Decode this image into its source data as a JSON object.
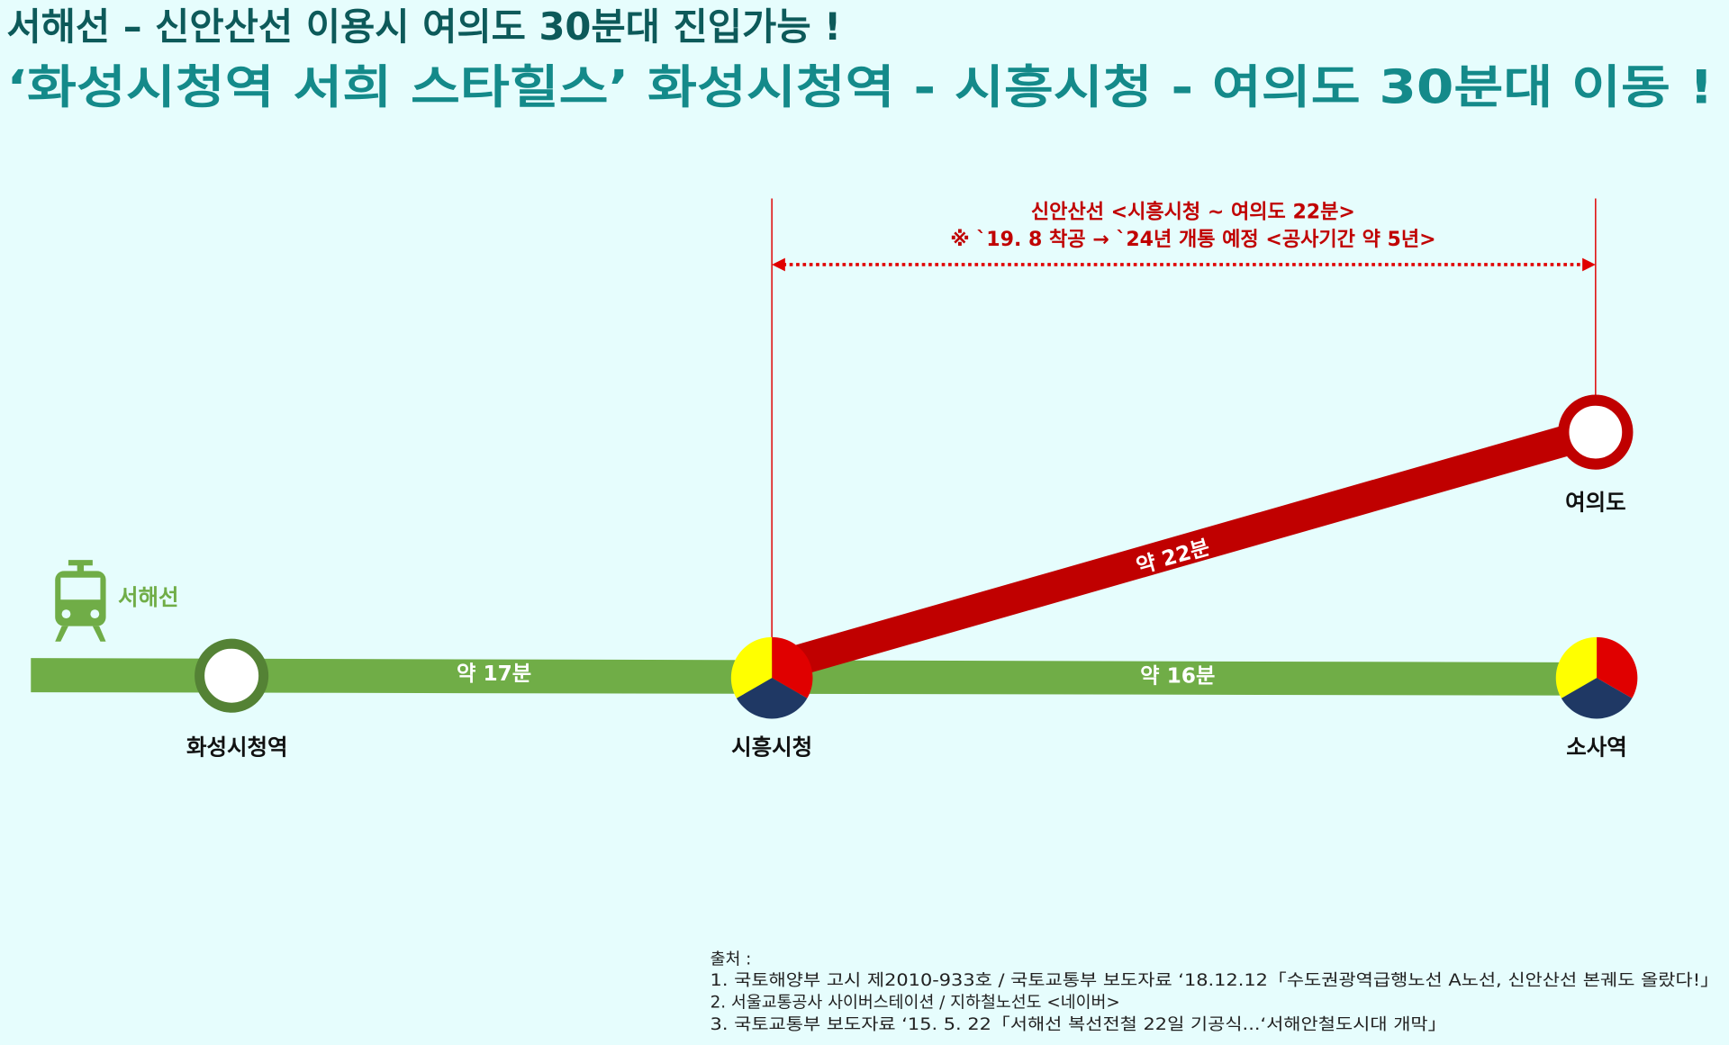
{
  "header": {
    "line1": "서해선 – 신안산선 이용시 여의도 30분대 진입가능 !",
    "line2": "‘화성시청역 서희 스타힐스’ 화성시청역 -  시흥시청 - 여의도 30분대 이동 !"
  },
  "annotation": {
    "line1": "신안산선 <시흥시청 ~ 여의도 22분>",
    "line2": "※ `19. 8 착공 → `24년 개통 예정 <공사기간 약 5년>"
  },
  "line_label": "서해선",
  "stations": [
    {
      "label": "화성시청역"
    },
    {
      "label": "시흥시청"
    },
    {
      "label": "소사역"
    },
    {
      "label": "여의도"
    }
  ],
  "segments": [
    {
      "label": "약 17분"
    },
    {
      "label": "약 16분"
    },
    {
      "label": "약 22분"
    }
  ],
  "sources": {
    "title": "출처 :",
    "items": [
      "1. 국토해양부 고시 제2010-933호 / 국토교통부 보도자료 ‘18.12.12「수도권광역급행노선 A노선, 신안산선 본궤도 올랐다!」",
      "2. 서울교통공사 사이버스테이션 / 지하철노선도 <네이버>",
      "3. 국토교통부 보도자료 ‘15. 5. 22「서해선 복선전철 22일 기공식...‘서해안철도시대 개막」"
    ]
  }
}
